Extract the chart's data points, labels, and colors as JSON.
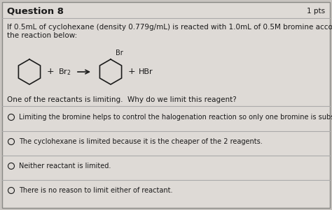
{
  "title": "Question 8",
  "pts": "1 pts",
  "bg_color": "#c8c4c0",
  "panel_color": "#dedad6",
  "question_text_line1": "If 0.5mL of cyclohexane (density 0.779g/mL) is reacted with 1.0mL of 0.5M bromine according to",
  "question_text_line2": "the reaction below:",
  "question2": "One of the reactants is limiting.  Why do we limit this reagent?",
  "choices": [
    "Limiting the bromine helps to control the halogenation reaction so only one bromine is substituted.",
    "The cyclohexane is limited because it is the cheaper of the 2 reagents.",
    "Neither reactant is limited.",
    "There is no reason to limit either of reactant."
  ],
  "text_color": "#1a1a1a",
  "sep_color": "#aaaaaa",
  "border_color": "#888884",
  "font_size": 7.5,
  "title_font_size": 9.5,
  "reaction_font_size": 8.0,
  "choice_font_size": 7.0
}
